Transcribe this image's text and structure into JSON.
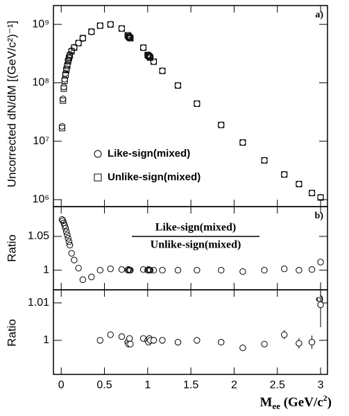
{
  "chart_data": [
    {
      "type": "scatter",
      "panel_label": "a)",
      "ylabel": "Uncorrected dN/dM [(GeV/c²)⁻¹]",
      "log_y": true,
      "ylim": [
        760000,
        2100000000
      ],
      "yticks": [
        {
          "value": 1000000,
          "label": "10⁶"
        },
        {
          "value": 10000000,
          "label": "10⁷"
        },
        {
          "value": 100000000,
          "label": "10⁸"
        },
        {
          "value": 1000000000,
          "label": "10⁹"
        }
      ],
      "x": [
        0.01,
        0.02,
        0.03,
        0.04,
        0.05,
        0.06,
        0.07,
        0.08,
        0.09,
        0.1,
        0.12,
        0.15,
        0.2,
        0.25,
        0.35,
        0.45,
        0.57,
        0.7,
        0.77,
        0.78,
        0.79,
        0.8,
        0.95,
        1.0,
        1.01,
        1.02,
        1.03,
        1.07,
        1.17,
        1.35,
        1.57,
        1.85,
        2.1,
        2.35,
        2.58,
        2.75,
        2.9,
        3.0
      ],
      "series": [
        {
          "name": "Like-sign(mixed)",
          "marker": "circle",
          "color": "#000000",
          "values": [
            18000000,
            53000000,
            85000000,
            115000000,
            145000000,
            175000000,
            205000000,
            245000000,
            275000000,
            305000000,
            355000000,
            405000000,
            480000000,
            575000000,
            745000000,
            950000000,
            1000000000,
            850000000,
            650000000,
            620000000,
            600000000,
            580000000,
            400000000,
            300000000,
            290000000,
            280000000,
            270000000,
            230000000,
            160000000,
            90000000,
            44000000,
            19000000,
            9500000,
            4700000,
            2700000,
            1850000,
            1300000,
            1100000
          ]
        },
        {
          "name": "Unlike-sign(mixed)",
          "marker": "square",
          "color": "#000000",
          "values": [
            16800000,
            49500000,
            79500000,
            108000000,
            136500000,
            165500000,
            195000000,
            234000000,
            264000000,
            294000000,
            346000000,
            399000000,
            478500000,
            583000000,
            752000000,
            950000000,
            998000000,
            849000000,
            650000000,
            619000000,
            600000000,
            580000000,
            399500000,
            300000000,
            289500000,
            280000000,
            270000000,
            230000000,
            160000000,
            90000000,
            44000000,
            19000000,
            9520000,
            4700000,
            2695000,
            1850000,
            1299000,
            1087000
          ]
        }
      ]
    },
    {
      "type": "scatter",
      "panel_label": "b)",
      "ylabel": "Ratio",
      "fraction": {
        "numerator": "Like-sign(mixed)",
        "denominator": "Unlike-sign(mixed)"
      },
      "ylim": [
        0.971,
        1.094
      ],
      "yticks": [
        1,
        1.05
      ],
      "x": [
        0.01,
        0.02,
        0.03,
        0.04,
        0.05,
        0.06,
        0.07,
        0.08,
        0.09,
        0.1,
        0.12,
        0.15,
        0.2,
        0.25,
        0.35,
        0.45,
        0.57,
        0.7,
        0.77,
        0.78,
        0.79,
        0.8,
        0.95,
        1.0,
        1.01,
        1.02,
        1.03,
        1.07,
        1.17,
        1.35,
        1.57,
        1.85,
        2.1,
        2.35,
        2.58,
        2.75,
        2.9,
        3.0
      ],
      "series": [
        {
          "marker": "circle",
          "color": "#000000",
          "values": [
            1.075,
            1.073,
            1.07,
            1.066,
            1.062,
            1.057,
            1.052,
            1.047,
            1.042,
            1.037,
            1.025,
            1.015,
            1.003,
            0.986,
            0.99,
            1.0,
            1.002,
            1.001,
            1.0,
            1.001,
            1.0,
            1.0,
            1.001,
            1.0,
            1.001,
            1.0,
            1.0,
            1.0,
            1.0,
            1.0,
            1.0,
            1.0,
            0.998,
            1.0,
            1.002,
            1.0,
            1.001,
            1.012
          ]
        }
      ]
    },
    {
      "type": "scatter",
      "panel_label": "c)",
      "ylabel": "Ratio",
      "ylim": [
        0.9909,
        1.0135
      ],
      "yticks": [
        1,
        1.01
      ],
      "xlim": [
        -0.09,
        3.08
      ],
      "xticks": [
        0,
        0.5,
        1,
        1.5,
        2,
        2.5,
        3
      ],
      "xlabel": [
        "M",
        "ee",
        " (GeV/c",
        "2",
        ")"
      ],
      "x": [
        0.45,
        0.57,
        0.7,
        0.77,
        0.78,
        0.79,
        0.8,
        0.95,
        1.0,
        1.01,
        1.02,
        1.03,
        1.07,
        1.17,
        1.35,
        1.57,
        1.85,
        2.1,
        2.35,
        2.58,
        2.75,
        2.9,
        3.0
      ],
      "series": [
        {
          "marker": "circle",
          "color": "#000000",
          "values": [
            1.0,
            1.0015,
            1.001,
            0.9995,
            0.999,
            1.0005,
            0.999,
            1.0005,
            1.0,
            0.9995,
            1.0005,
            1.0,
            1.0,
            1.0,
            0.9995,
            1.0,
            0.9995,
            0.998,
            0.999,
            1.0015,
            0.9992,
            0.9995,
            1.0095
          ],
          "errors": [
            0.0003,
            0.0003,
            0.0003,
            0.0004,
            0.0004,
            0.0004,
            0.0004,
            0.0004,
            0.0004,
            0.0004,
            0.0004,
            0.0004,
            0.0004,
            0.0004,
            0.0004,
            0.0005,
            0.0005,
            0.0006,
            0.0008,
            0.0012,
            0.0014,
            0.0018,
            0.006
          ]
        }
      ]
    }
  ]
}
